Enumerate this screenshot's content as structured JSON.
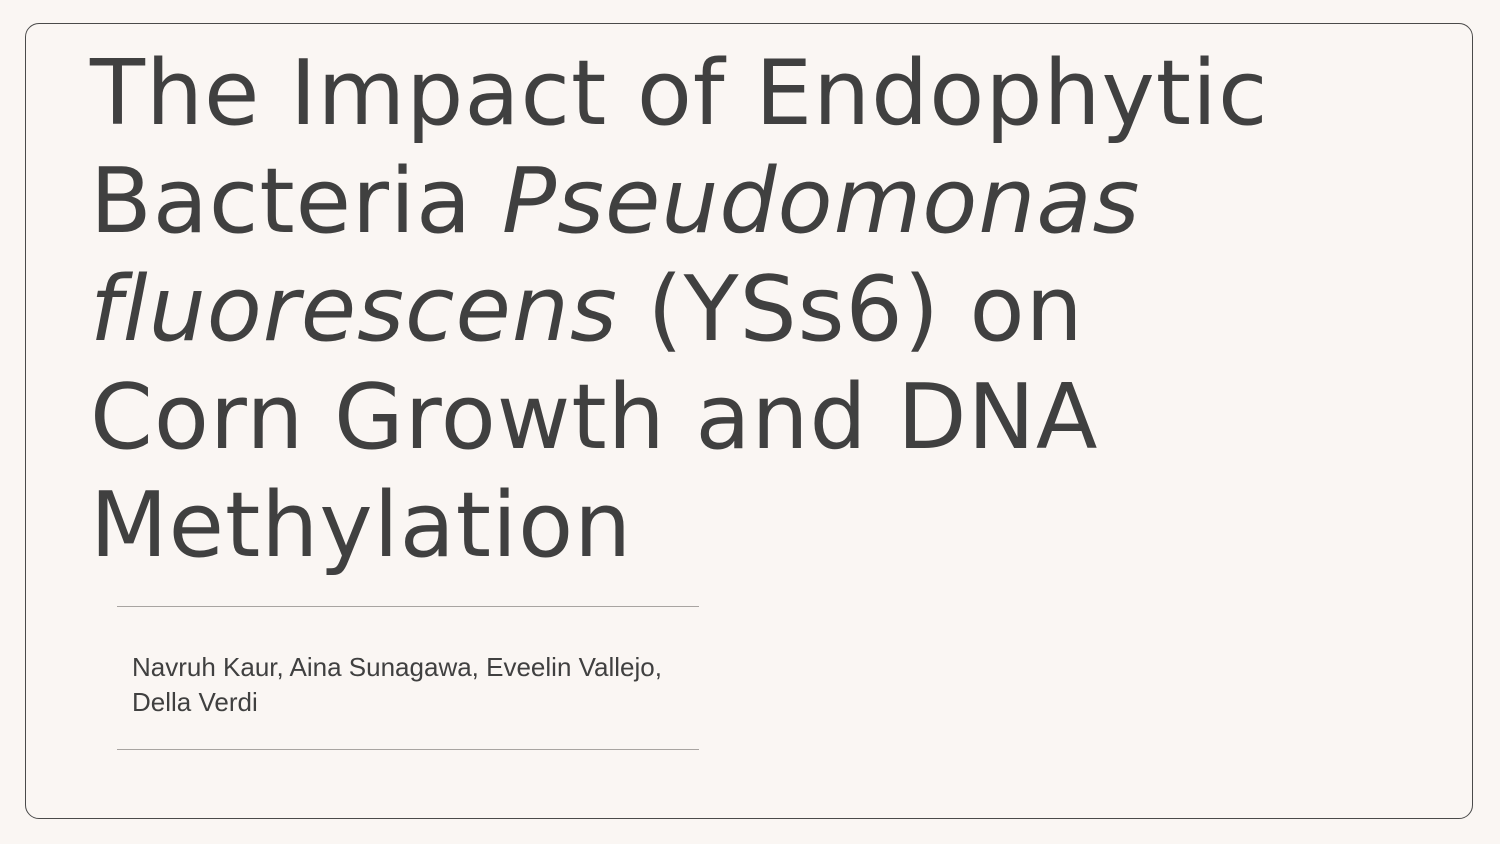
{
  "slide": {
    "title": {
      "line1": "The Impact of Endophytic",
      "line2_plain": "Bacteria ",
      "line2_italic": "Pseudomonas",
      "line3_italic": "fluorescens",
      "line3_plain": " (YSs6) on",
      "line4": "Corn Growth and DNA",
      "line5": "Methylation"
    },
    "authors": "Navruh Kaur, Aina Sunagawa, Eveelin Vallejo, Della Verdi"
  },
  "colors": {
    "background": "#faf6f3",
    "text": "#404040",
    "frame": "#4a4a4a",
    "rule": "#a8a4a1"
  }
}
